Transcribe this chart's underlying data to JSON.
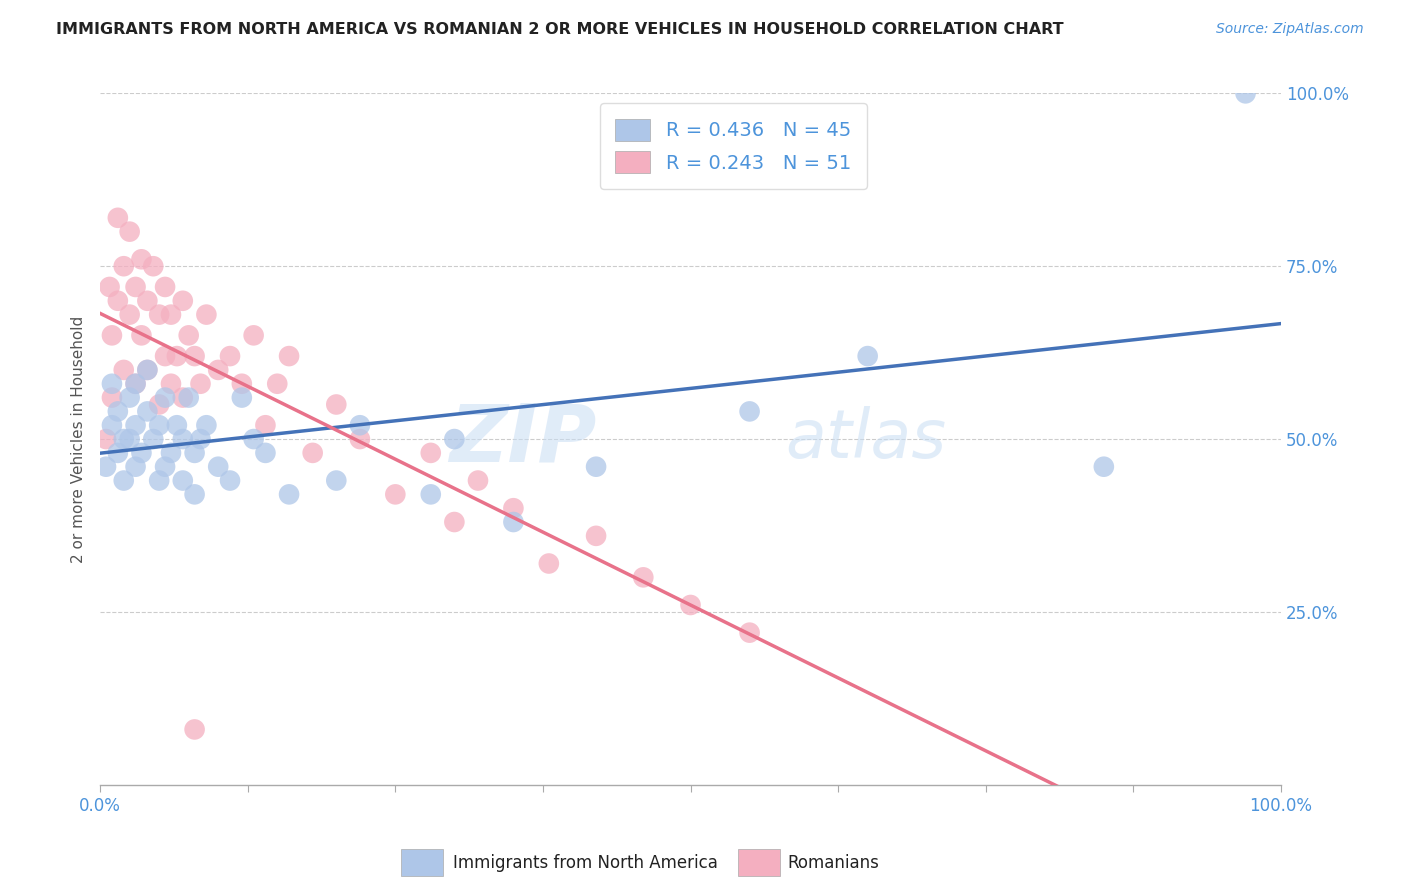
{
  "title": "IMMIGRANTS FROM NORTH AMERICA VS ROMANIAN 2 OR MORE VEHICLES IN HOUSEHOLD CORRELATION CHART",
  "source": "Source: ZipAtlas.com",
  "ylabel": "2 or more Vehicles in Household",
  "xlim": [
    0.0,
    1.0
  ],
  "ylim": [
    0.0,
    1.0
  ],
  "xticks": [
    0.0,
    0.125,
    0.25,
    0.375,
    0.5,
    0.625,
    0.75,
    0.875,
    1.0
  ],
  "xticklabels": [
    "0.0%",
    "",
    "",
    "",
    "",
    "",
    "",
    "",
    "100.0%"
  ],
  "yticks": [
    0.25,
    0.5,
    0.75,
    1.0
  ],
  "yticklabels": [
    "25.0%",
    "50.0%",
    "75.0%",
    "100.0%"
  ],
  "legend_label1": "Immigrants from North America",
  "legend_label2": "Romanians",
  "R1": 0.436,
  "N1": 45,
  "R2": 0.243,
  "N2": 51,
  "color1": "#aec6e8",
  "color2": "#f4afc0",
  "line_color1": "#4472b8",
  "line_color2": "#e8728a",
  "watermark_zip": "ZIP",
  "watermark_atlas": "atlas",
  "background_color": "#ffffff",
  "grid_color": "#cccccc",
  "title_color": "#222222",
  "axis_color": "#4d94db",
  "scatter1_x": [
    0.005,
    0.01,
    0.01,
    0.015,
    0.015,
    0.02,
    0.02,
    0.025,
    0.025,
    0.03,
    0.03,
    0.03,
    0.035,
    0.04,
    0.04,
    0.045,
    0.05,
    0.05,
    0.055,
    0.055,
    0.06,
    0.065,
    0.07,
    0.07,
    0.075,
    0.08,
    0.08,
    0.085,
    0.09,
    0.1,
    0.11,
    0.12,
    0.13,
    0.14,
    0.16,
    0.2,
    0.22,
    0.28,
    0.3,
    0.35,
    0.42,
    0.55,
    0.65,
    0.85,
    0.97
  ],
  "scatter1_y": [
    0.46,
    0.58,
    0.52,
    0.48,
    0.54,
    0.5,
    0.44,
    0.56,
    0.5,
    0.52,
    0.46,
    0.58,
    0.48,
    0.6,
    0.54,
    0.5,
    0.52,
    0.44,
    0.46,
    0.56,
    0.48,
    0.52,
    0.5,
    0.44,
    0.56,
    0.48,
    0.42,
    0.5,
    0.52,
    0.46,
    0.44,
    0.56,
    0.5,
    0.48,
    0.42,
    0.44,
    0.52,
    0.42,
    0.5,
    0.38,
    0.46,
    0.54,
    0.62,
    0.46,
    1.0
  ],
  "scatter2_x": [
    0.005,
    0.008,
    0.01,
    0.01,
    0.015,
    0.015,
    0.02,
    0.02,
    0.025,
    0.025,
    0.03,
    0.03,
    0.035,
    0.035,
    0.04,
    0.04,
    0.045,
    0.05,
    0.05,
    0.055,
    0.055,
    0.06,
    0.06,
    0.065,
    0.07,
    0.07,
    0.075,
    0.08,
    0.085,
    0.09,
    0.1,
    0.11,
    0.12,
    0.13,
    0.14,
    0.15,
    0.16,
    0.18,
    0.2,
    0.22,
    0.25,
    0.28,
    0.3,
    0.32,
    0.35,
    0.38,
    0.42,
    0.46,
    0.5,
    0.55,
    0.08
  ],
  "scatter2_y": [
    0.5,
    0.72,
    0.65,
    0.56,
    0.82,
    0.7,
    0.75,
    0.6,
    0.8,
    0.68,
    0.72,
    0.58,
    0.65,
    0.76,
    0.7,
    0.6,
    0.75,
    0.68,
    0.55,
    0.62,
    0.72,
    0.68,
    0.58,
    0.62,
    0.7,
    0.56,
    0.65,
    0.62,
    0.58,
    0.68,
    0.6,
    0.62,
    0.58,
    0.65,
    0.52,
    0.58,
    0.62,
    0.48,
    0.55,
    0.5,
    0.42,
    0.48,
    0.38,
    0.44,
    0.4,
    0.32,
    0.36,
    0.3,
    0.26,
    0.22,
    0.08
  ]
}
